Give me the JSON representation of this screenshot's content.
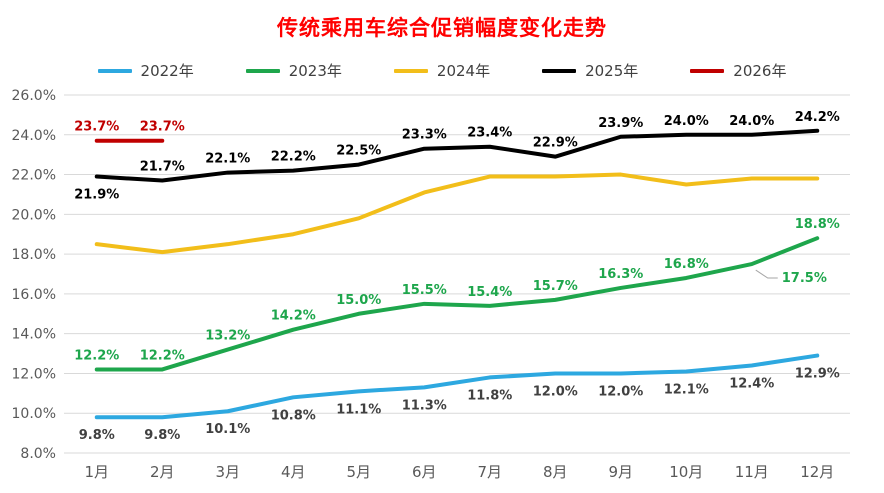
{
  "chart_data": {
    "type": "line",
    "title": "传统乘用车综合促销幅度变化走势",
    "categories": [
      "1月",
      "2月",
      "3月",
      "4月",
      "5月",
      "6月",
      "7月",
      "8月",
      "9月",
      "10月",
      "11月",
      "12月"
    ],
    "ylim": [
      8,
      26
    ],
    "ytick_step": 2,
    "ytick_suffix": "%",
    "grid": true,
    "legend_position": "top",
    "gridline_color": "#d9d9d9",
    "axis_text_color": "#595959",
    "series": [
      {
        "name": "2022年",
        "color": "#2da8e0",
        "label_color": "#404040",
        "values": [
          9.8,
          9.8,
          10.1,
          10.8,
          11.1,
          11.3,
          11.8,
          12.0,
          12.0,
          12.1,
          12.4,
          12.9
        ],
        "labels": [
          "9.8%",
          "9.8%",
          "10.1%",
          "10.8%",
          "11.1%",
          "11.3%",
          "11.8%",
          "12.0%",
          "12.0%",
          "12.1%",
          "12.4%",
          "12.9%"
        ],
        "label_side": "below"
      },
      {
        "name": "2023年",
        "color": "#1ea64c",
        "label_color": "#1ea64c",
        "values": [
          12.2,
          12.2,
          13.2,
          14.2,
          15.0,
          15.5,
          15.4,
          15.7,
          16.3,
          16.8,
          17.5,
          18.8
        ],
        "labels": [
          "12.2%",
          "12.2%",
          "13.2%",
          "14.2%",
          "15.0%",
          "15.5%",
          "15.4%",
          "15.7%",
          "16.3%",
          "16.8%",
          "17.5%",
          "18.8%"
        ],
        "label_side": "above",
        "label_overrides": {
          "10": "right"
        }
      },
      {
        "name": "2024年",
        "color": "#f2be1a",
        "label_color": "#f2be1a",
        "values": [
          18.5,
          18.1,
          18.5,
          19.0,
          19.8,
          21.1,
          21.9,
          21.9,
          22.0,
          21.5,
          21.8,
          21.8
        ],
        "labels": null,
        "label_side": "above"
      },
      {
        "name": "2025年",
        "color": "#000000",
        "label_color": "#000000",
        "values": [
          21.9,
          21.7,
          22.1,
          22.2,
          22.5,
          23.3,
          23.4,
          22.9,
          23.9,
          24.0,
          24.0,
          24.2
        ],
        "labels": [
          "21.9%",
          "21.7%",
          "22.1%",
          "22.2%",
          "22.5%",
          "23.3%",
          "23.4%",
          "22.9%",
          "23.9%",
          "24.0%",
          "24.0%",
          "24.2%"
        ],
        "label_side": "above",
        "label_overrides": {
          "0": "below"
        }
      },
      {
        "name": "2026年",
        "color": "#c00000",
        "label_color": "#c00000",
        "values": [
          23.7,
          23.7,
          null,
          null,
          null,
          null,
          null,
          null,
          null,
          null,
          null,
          null
        ],
        "labels": [
          "23.7%",
          "23.7%",
          null,
          null,
          null,
          null,
          null,
          null,
          null,
          null,
          null,
          null
        ],
        "label_side": "above"
      }
    ]
  }
}
